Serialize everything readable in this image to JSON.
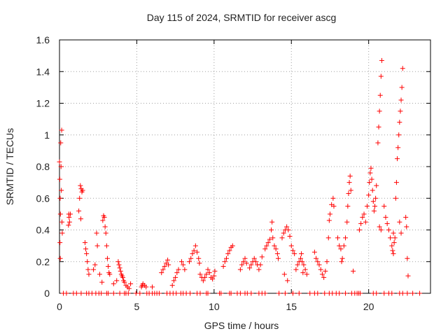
{
  "chart_data": {
    "type": "scatter",
    "title": "Day 115 of 2024, SRMTID for receiver ascg",
    "xlabel": "GPS time / hours",
    "ylabel": "SRMTID / TECUs",
    "xlim": [
      0,
      24
    ],
    "ylim": [
      0,
      1.6
    ],
    "xticks": [
      0,
      5,
      10,
      15,
      20
    ],
    "xtick_labels": [
      "0",
      "5",
      "10",
      "15",
      "20"
    ],
    "yticks": [
      0,
      0.2,
      0.4,
      0.6,
      0.8,
      1.0,
      1.2,
      1.4,
      1.6
    ],
    "ytick_labels": [
      "0",
      "0.2",
      "0.4",
      "0.6",
      "0.8",
      "1",
      "1.2",
      "1.4",
      "1.6"
    ],
    "grid": true,
    "marker": "+",
    "marker_color": "#ff0000",
    "series": [
      {
        "name": "SRMTID",
        "points": [
          [
            0.0,
            0.83
          ],
          [
            0.02,
            0.72
          ],
          [
            0.04,
            0.6
          ],
          [
            0.06,
            0.5
          ],
          [
            0.08,
            0.95
          ],
          [
            0.1,
            0.8
          ],
          [
            0.12,
            0.65
          ],
          [
            0.14,
            1.03
          ],
          [
            0.16,
            0.45
          ],
          [
            0.18,
            0.38
          ],
          [
            0.03,
            0.32
          ],
          [
            0.05,
            0.22
          ],
          [
            0.6,
            0.5
          ],
          [
            0.62,
            0.48
          ],
          [
            0.65,
            0.45
          ],
          [
            0.58,
            0.43
          ],
          [
            0.7,
            0.5
          ],
          [
            1.25,
            0.52
          ],
          [
            1.3,
            0.6
          ],
          [
            1.35,
            0.68
          ],
          [
            1.4,
            0.66
          ],
          [
            1.45,
            0.64
          ],
          [
            1.5,
            0.65
          ],
          [
            1.38,
            0.47
          ],
          [
            1.65,
            0.32
          ],
          [
            1.7,
            0.28
          ],
          [
            1.75,
            0.25
          ],
          [
            1.8,
            0.2
          ],
          [
            1.85,
            0.15
          ],
          [
            1.9,
            0.12
          ],
          [
            2.2,
            0.15
          ],
          [
            2.3,
            0.18
          ],
          [
            2.4,
            0.38
          ],
          [
            2.45,
            0.3
          ],
          [
            2.6,
            0.12
          ],
          [
            2.75,
            0.07
          ],
          [
            2.8,
            0.46
          ],
          [
            2.85,
            0.49
          ],
          [
            2.9,
            0.48
          ],
          [
            2.95,
            0.42
          ],
          [
            3.0,
            0.38
          ],
          [
            3.05,
            0.3
          ],
          [
            3.1,
            0.22
          ],
          [
            3.15,
            0.17
          ],
          [
            3.2,
            0.13
          ],
          [
            3.25,
            0.12
          ],
          [
            3.5,
            0.06
          ],
          [
            3.7,
            0.08
          ],
          [
            3.8,
            0.2
          ],
          [
            3.85,
            0.18
          ],
          [
            3.9,
            0.16
          ],
          [
            3.95,
            0.14
          ],
          [
            4.0,
            0.12
          ],
          [
            4.05,
            0.11
          ],
          [
            4.1,
            0.1
          ],
          [
            4.15,
            0.08
          ],
          [
            4.2,
            0.07
          ],
          [
            4.3,
            0.05
          ],
          [
            4.4,
            0.04
          ],
          [
            4.5,
            0.03
          ],
          [
            4.6,
            0.06
          ],
          [
            5.3,
            0.04
          ],
          [
            5.35,
            0.05
          ],
          [
            5.4,
            0.06
          ],
          [
            5.5,
            0.05
          ],
          [
            5.6,
            0.04
          ],
          [
            6.0,
            0.04
          ],
          [
            6.6,
            0.13
          ],
          [
            6.7,
            0.15
          ],
          [
            6.8,
            0.17
          ],
          [
            6.9,
            0.19
          ],
          [
            7.0,
            0.21
          ],
          [
            7.05,
            0.18
          ],
          [
            7.3,
            0.05
          ],
          [
            7.4,
            0.08
          ],
          [
            7.5,
            0.1
          ],
          [
            7.6,
            0.13
          ],
          [
            7.7,
            0.15
          ],
          [
            7.9,
            0.2
          ],
          [
            8.0,
            0.18
          ],
          [
            8.1,
            0.15
          ],
          [
            8.4,
            0.2
          ],
          [
            8.5,
            0.22
          ],
          [
            8.6,
            0.25
          ],
          [
            8.7,
            0.27
          ],
          [
            8.8,
            0.3
          ],
          [
            8.9,
            0.26
          ],
          [
            9.0,
            0.22
          ],
          [
            9.05,
            0.19
          ],
          [
            9.1,
            0.12
          ],
          [
            9.2,
            0.1
          ],
          [
            9.3,
            0.08
          ],
          [
            9.4,
            0.1
          ],
          [
            9.5,
            0.12
          ],
          [
            9.6,
            0.15
          ],
          [
            9.7,
            0.13
          ],
          [
            9.8,
            0.1
          ],
          [
            9.9,
            0.09
          ],
          [
            10.0,
            0.11
          ],
          [
            10.05,
            0.14
          ],
          [
            10.6,
            0.17
          ],
          [
            10.7,
            0.2
          ],
          [
            10.8,
            0.22
          ],
          [
            10.9,
            0.25
          ],
          [
            11.0,
            0.27
          ],
          [
            11.1,
            0.29
          ],
          [
            11.2,
            0.3
          ],
          [
            11.7,
            0.15
          ],
          [
            11.8,
            0.18
          ],
          [
            11.9,
            0.2
          ],
          [
            12.0,
            0.22
          ],
          [
            12.1,
            0.19
          ],
          [
            12.3,
            0.16
          ],
          [
            12.4,
            0.18
          ],
          [
            12.5,
            0.2
          ],
          [
            12.6,
            0.22
          ],
          [
            12.7,
            0.2
          ],
          [
            12.8,
            0.18
          ],
          [
            12.9,
            0.15
          ],
          [
            13.0,
            0.18
          ],
          [
            13.1,
            0.23
          ],
          [
            13.3,
            0.28
          ],
          [
            13.4,
            0.3
          ],
          [
            13.5,
            0.32
          ],
          [
            13.6,
            0.34
          ],
          [
            13.7,
            0.4
          ],
          [
            13.75,
            0.45
          ],
          [
            13.8,
            0.35
          ],
          [
            13.9,
            0.3
          ],
          [
            14.0,
            0.28
          ],
          [
            14.1,
            0.25
          ],
          [
            14.15,
            0.22
          ],
          [
            14.4,
            0.35
          ],
          [
            14.5,
            0.38
          ],
          [
            14.6,
            0.4
          ],
          [
            14.7,
            0.42
          ],
          [
            14.8,
            0.4
          ],
          [
            14.9,
            0.36
          ],
          [
            14.55,
            0.12
          ],
          [
            14.75,
            0.08
          ],
          [
            15.0,
            0.3
          ],
          [
            15.1,
            0.27
          ],
          [
            15.2,
            0.25
          ],
          [
            15.3,
            0.15
          ],
          [
            15.4,
            0.18
          ],
          [
            15.5,
            0.2
          ],
          [
            15.6,
            0.22
          ],
          [
            15.7,
            0.2
          ],
          [
            15.8,
            0.18
          ],
          [
            15.9,
            0.15
          ],
          [
            16.0,
            0.12
          ],
          [
            15.65,
            0.25
          ],
          [
            15.75,
            0.13
          ],
          [
            16.5,
            0.26
          ],
          [
            16.6,
            0.22
          ],
          [
            16.7,
            0.2
          ],
          [
            16.8,
            0.18
          ],
          [
            16.9,
            0.15
          ],
          [
            17.0,
            0.12
          ],
          [
            17.1,
            0.1
          ],
          [
            17.2,
            0.14
          ],
          [
            17.3,
            0.2
          ],
          [
            17.4,
            0.35
          ],
          [
            17.45,
            0.46
          ],
          [
            17.5,
            0.5
          ],
          [
            17.6,
            0.56
          ],
          [
            17.7,
            0.6
          ],
          [
            17.75,
            0.55
          ],
          [
            18.0,
            0.35
          ],
          [
            18.1,
            0.3
          ],
          [
            18.2,
            0.28
          ],
          [
            18.25,
            0.2
          ],
          [
            18.3,
            0.22
          ],
          [
            18.4,
            0.3
          ],
          [
            18.5,
            0.35
          ],
          [
            18.6,
            0.45
          ],
          [
            18.65,
            0.55
          ],
          [
            18.7,
            0.63
          ],
          [
            18.75,
            0.7
          ],
          [
            18.8,
            0.74
          ],
          [
            18.85,
            0.65
          ],
          [
            19.0,
            0.14
          ],
          [
            19.4,
            0.4
          ],
          [
            19.5,
            0.44
          ],
          [
            19.6,
            0.48
          ],
          [
            19.7,
            0.5
          ],
          [
            19.8,
            0.45
          ],
          [
            19.9,
            0.55
          ],
          [
            20.0,
            0.62
          ],
          [
            20.05,
            0.7
          ],
          [
            20.1,
            0.76
          ],
          [
            20.15,
            0.79
          ],
          [
            20.2,
            0.72
          ],
          [
            20.25,
            0.65
          ],
          [
            20.3,
            0.58
          ],
          [
            20.35,
            0.52
          ],
          [
            20.4,
            0.55
          ],
          [
            20.45,
            0.6
          ],
          [
            20.5,
            0.68
          ],
          [
            20.6,
            0.95
          ],
          [
            20.65,
            1.05
          ],
          [
            20.7,
            1.15
          ],
          [
            20.75,
            1.25
          ],
          [
            20.8,
            1.37
          ],
          [
            20.85,
            1.47
          ],
          [
            20.7,
            0.42
          ],
          [
            20.8,
            0.4
          ],
          [
            21.0,
            0.55
          ],
          [
            21.1,
            0.48
          ],
          [
            21.2,
            0.44
          ],
          [
            21.3,
            0.4
          ],
          [
            21.4,
            0.35
          ],
          [
            21.5,
            0.3
          ],
          [
            21.55,
            0.27
          ],
          [
            21.6,
            0.25
          ],
          [
            21.65,
            0.32
          ],
          [
            21.7,
            0.35
          ],
          [
            21.6,
            0.38
          ],
          [
            21.75,
            0.6
          ],
          [
            21.8,
            0.7
          ],
          [
            21.85,
            0.85
          ],
          [
            21.9,
            0.92
          ],
          [
            21.95,
            1.0
          ],
          [
            22.0,
            1.08
          ],
          [
            22.05,
            1.15
          ],
          [
            22.1,
            1.22
          ],
          [
            22.15,
            1.3
          ],
          [
            22.2,
            1.42
          ],
          [
            22.0,
            0.45
          ],
          [
            22.1,
            0.38
          ],
          [
            22.4,
            0.48
          ],
          [
            22.45,
            0.42
          ],
          [
            22.5,
            0.22
          ],
          [
            22.55,
            0.11
          ]
        ],
        "zero_points": [
          0.25,
          0.45,
          0.9,
          1.1,
          1.4,
          1.75,
          1.9,
          2.1,
          2.35,
          2.55,
          2.7,
          3.05,
          3.15,
          3.5,
          3.9,
          4.2,
          4.3,
          4.45,
          4.95,
          5.2,
          5.65,
          5.8,
          6.0,
          6.15,
          6.3,
          6.45,
          6.95,
          7.15,
          7.35,
          7.55,
          7.85,
          8.0,
          8.2,
          8.45,
          8.9,
          9.1,
          9.5,
          9.6,
          10.35,
          10.45,
          11.0,
          11.1,
          11.5,
          11.7,
          12.0,
          12.15,
          12.4,
          12.9,
          13.1,
          13.3,
          14.2,
          14.6,
          15.1,
          15.5,
          16.2,
          16.5,
          16.7,
          17.15,
          17.45,
          17.65,
          17.9,
          18.1,
          18.5,
          18.9,
          19.1,
          19.25,
          19.35,
          19.45,
          20.3,
          20.5,
          21.0,
          21.3,
          21.5,
          22.0,
          22.2,
          22.5,
          22.85,
          23.3
        ]
      }
    ]
  }
}
